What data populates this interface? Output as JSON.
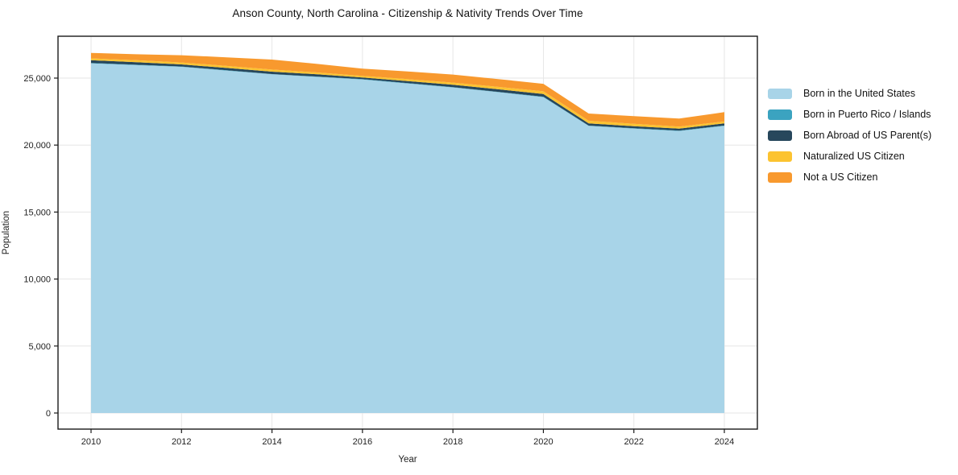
{
  "chart_data": {
    "type": "area",
    "stacked": true,
    "title": "Anson County, North Carolina - Citizenship & Nativity Trends Over Time",
    "xlabel": "Year",
    "ylabel": "Population",
    "x": [
      2010,
      2011,
      2012,
      2013,
      2014,
      2015,
      2016,
      2017,
      2018,
      2019,
      2020,
      2021,
      2022,
      2023,
      2024
    ],
    "series": [
      {
        "name": "Born in the United States",
        "color": "#a8d4e8",
        "values": [
          26100,
          25970,
          25840,
          25560,
          25280,
          25090,
          24900,
          24600,
          24300,
          23950,
          23580,
          21430,
          21230,
          21050,
          21430
        ]
      },
      {
        "name": "Born in Puerto Rico / Islands",
        "color": "#3ba3c0",
        "values": [
          30,
          30,
          25,
          25,
          20,
          25,
          25,
          30,
          25,
          25,
          30,
          25,
          25,
          25,
          30
        ]
      },
      {
        "name": "Born Abroad of US Parent(s)",
        "color": "#27475c",
        "values": [
          205,
          190,
          155,
          170,
          180,
          165,
          120,
          150,
          180,
          190,
          200,
          160,
          160,
          155,
          160
        ]
      },
      {
        "name": "Naturalized US Citizen",
        "color": "#fcc330",
        "values": [
          140,
          142,
          145,
          155,
          160,
          140,
          120,
          140,
          160,
          180,
          205,
          200,
          175,
          155,
          140
        ]
      },
      {
        "name": "Not a US Citizen",
        "color": "#f8992e",
        "values": [
          405,
          445,
          540,
          640,
          740,
          640,
          540,
          570,
          600,
          580,
          560,
          540,
          570,
          600,
          700
        ]
      }
    ],
    "x_ticks": [
      2010,
      2012,
      2014,
      2016,
      2018,
      2020,
      2022,
      2024
    ],
    "x_tick_labels": [
      "2010",
      "2012",
      "2014",
      "2016",
      "2018",
      "2020",
      "2022",
      "2024"
    ],
    "y_ticks": [
      0,
      5000,
      10000,
      15000,
      20000,
      25000
    ],
    "y_tick_labels": [
      "0",
      "5,000",
      "10,000",
      "15,000",
      "20,000",
      "25,000"
    ],
    "ylim": [
      0,
      28100
    ],
    "grid": true,
    "legend_position": "right"
  }
}
